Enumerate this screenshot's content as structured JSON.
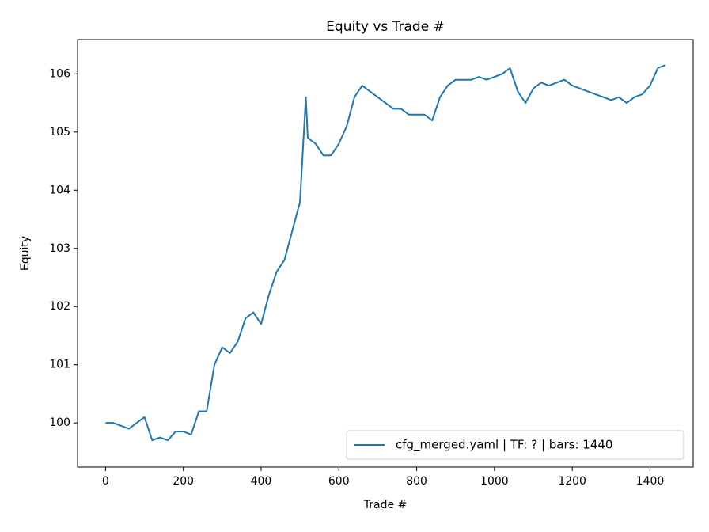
{
  "chart_data": {
    "type": "line",
    "title": "Equity vs Trade #",
    "x_label": "Trade #",
    "y_label": "Equity",
    "x": [
      0,
      20,
      40,
      60,
      80,
      100,
      120,
      140,
      160,
      180,
      200,
      220,
      240,
      260,
      280,
      300,
      320,
      340,
      360,
      380,
      400,
      420,
      440,
      460,
      480,
      500,
      510,
      515,
      520,
      540,
      560,
      580,
      600,
      620,
      640,
      660,
      680,
      700,
      720,
      740,
      760,
      780,
      800,
      820,
      840,
      860,
      880,
      900,
      920,
      940,
      960,
      980,
      1000,
      1020,
      1040,
      1060,
      1080,
      1100,
      1120,
      1140,
      1160,
      1180,
      1200,
      1220,
      1240,
      1260,
      1280,
      1300,
      1320,
      1340,
      1360,
      1380,
      1400,
      1420,
      1439
    ],
    "series": [
      {
        "name": "cfg_merged.yaml | TF: ? | bars: 1440",
        "color": "#1f77b4",
        "values": [
          100,
          100,
          99.95,
          99.9,
          100.0,
          100.1,
          99.7,
          99.75,
          99.7,
          99.85,
          99.85,
          99.8,
          100.2,
          100.2,
          101.0,
          101.3,
          101.2,
          101.4,
          101.8,
          101.9,
          101.7,
          102.2,
          102.6,
          102.8,
          103.3,
          103.8,
          105.0,
          105.6,
          104.9,
          104.8,
          104.6,
          104.6,
          104.8,
          105.1,
          105.6,
          105.8,
          105.7,
          105.6,
          105.5,
          105.4,
          105.4,
          105.3,
          105.3,
          105.3,
          105.2,
          105.6,
          105.8,
          105.9,
          105.9,
          105.9,
          105.95,
          105.9,
          105.95,
          106.0,
          106.1,
          105.7,
          105.5,
          105.75,
          105.85,
          105.8,
          105.85,
          105.9,
          105.8,
          105.75,
          105.7,
          105.65,
          105.6,
          105.55,
          105.6,
          105.5,
          105.6,
          105.65,
          105.8,
          106.1,
          106.15
        ]
      }
    ],
    "xlim": [
      -72,
      1511
    ],
    "ylim": [
      99.24,
      106.59
    ],
    "xticks": [
      0,
      200,
      400,
      600,
      800,
      1000,
      1200,
      1400
    ],
    "yticks": [
      100,
      101,
      102,
      103,
      104,
      105,
      106
    ],
    "grid": false,
    "legend": "lower right"
  }
}
